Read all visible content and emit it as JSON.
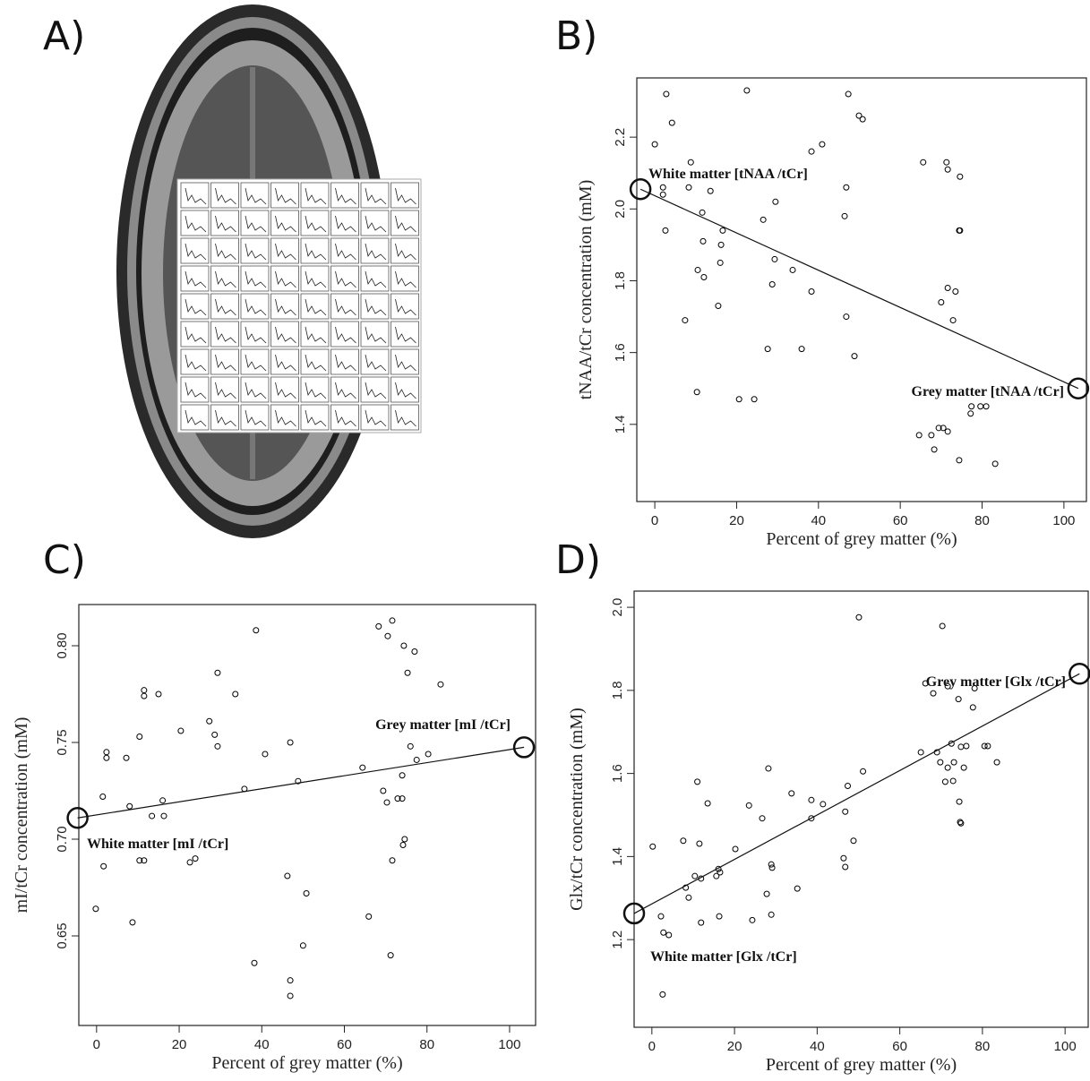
{
  "panel_labels": [
    "A)",
    "B)",
    "C)",
    "D)"
  ],
  "chart_data": [
    {
      "type": "scatter",
      "xlabel": "Percent of grey matter (%)",
      "ylabel": "tNAA/tCr concentration (mM)",
      "color": "#000000",
      "annotations": [
        "White matter [tNAA /tCr]",
        "Grey matter [tNAA /tCr]"
      ],
      "xlim": [
        -4.4,
        105.5
      ],
      "ylim": [
        1.185,
        2.365
      ],
      "xticks": [
        0,
        20,
        40,
        60,
        80,
        100
      ],
      "yticks": [
        1.4,
        1.6,
        1.8,
        {
          "value": 2,
          "label": "2.0"
        },
        2.2
      ],
      "x": [
        2.8,
        22.5,
        47.3,
        4.2,
        49.9,
        50.8,
        0,
        38.3,
        40.9,
        8.8,
        65.6,
        71.3,
        71.6,
        74.6,
        2,
        2,
        8.3,
        13.6,
        46.8,
        29.5,
        11.6,
        46.4,
        26.5,
        74.4,
        74.6,
        2.6,
        16.6,
        11.8,
        16.2,
        29.3,
        16,
        33.7,
        10.5,
        12,
        28.7,
        71.6,
        73.5,
        38.3,
        70,
        15.5,
        46.8,
        72.9,
        7.4,
        27.6,
        35.9,
        48.8,
        10.3,
        20.6,
        24.3,
        79.6,
        81,
        77.4,
        77.2,
        70.5,
        69.4,
        71.6,
        64.6,
        67.6,
        68.3,
        74.4,
        83.2
      ],
      "values": [
        2.32,
        2.33,
        2.32,
        2.24,
        2.26,
        2.25,
        2.18,
        2.16,
        2.18,
        2.13,
        2.13,
        2.13,
        2.11,
        2.09,
        2.06,
        2.04,
        2.06,
        2.05,
        2.06,
        2.02,
        1.99,
        1.98,
        1.97,
        1.94,
        1.94,
        1.94,
        1.94,
        1.91,
        1.9,
        1.86,
        1.85,
        1.83,
        1.83,
        1.81,
        1.79,
        1.78,
        1.77,
        1.77,
        1.74,
        1.73,
        1.7,
        1.69,
        1.69,
        1.61,
        1.61,
        1.59,
        1.49,
        1.47,
        1.47,
        1.45,
        1.45,
        1.45,
        1.43,
        1.39,
        1.39,
        1.38,
        1.37,
        1.37,
        1.33,
        1.3,
        1.29
      ],
      "fit": {
        "x": [
          -3.5,
          103.5
        ],
        "y": [
          2.055,
          1.5
        ]
      }
    },
    {
      "type": "scatter",
      "xlabel": "Percent of grey matter (%)",
      "ylabel": "mI/tCr concentration (mM)",
      "color": "#000000",
      "annotations": [
        "White matter [mI /tCr]",
        "Grey matter [mI /tCr]"
      ],
      "xlim": [
        -4.3,
        106.3
      ],
      "ylim": [
        0.6037,
        0.8213
      ],
      "xticks": [
        0,
        20,
        40,
        60,
        80,
        100
      ],
      "yticks": [
        0.65,
        {
          "value": 0.7,
          "label": "0.70"
        },
        0.75,
        {
          "value": 0.8,
          "label": "0.80"
        }
      ],
      "x": [
        68.3,
        71.6,
        70.5,
        38.6,
        74.4,
        77,
        75.3,
        29.3,
        83.3,
        11.5,
        11.5,
        15,
        33.6,
        27.3,
        10.4,
        28.6,
        20.4,
        29.3,
        46.9,
        76,
        2.4,
        2.4,
        40.8,
        80.3,
        77.5,
        7.2,
        64.4,
        48.8,
        35.8,
        69.4,
        1.5,
        16,
        74,
        74,
        72.9,
        70.3,
        8,
        13.4,
        16.3,
        74.6,
        74.2,
        10.4,
        11.5,
        71.6,
        22.6,
        23.9,
        1.7,
        46.2,
        50.8,
        -0.2,
        65.9,
        8.7,
        50,
        71.2,
        38.2,
        46.9,
        46.9
      ],
      "values": [
        0.81,
        0.813,
        0.805,
        0.808,
        0.8,
        0.797,
        0.786,
        0.786,
        0.78,
        0.777,
        0.774,
        0.775,
        0.775,
        0.761,
        0.753,
        0.754,
        0.756,
        0.748,
        0.75,
        0.748,
        0.745,
        0.742,
        0.744,
        0.744,
        0.741,
        0.742,
        0.737,
        0.73,
        0.726,
        0.725,
        0.722,
        0.72,
        0.733,
        0.721,
        0.721,
        0.719,
        0.717,
        0.712,
        0.712,
        0.7,
        0.697,
        0.689,
        0.689,
        0.689,
        0.688,
        0.69,
        0.686,
        0.681,
        0.672,
        0.664,
        0.66,
        0.657,
        0.645,
        0.64,
        0.636,
        0.627,
        0.619
      ],
      "fit": {
        "x": [
          -4.6,
          103.5
        ],
        "y": [
          0.711,
          0.7475
        ]
      }
    },
    {
      "type": "scatter",
      "xlabel": "Percent of grey matter (%)",
      "ylabel": "Glx/tCr concentration (mM)",
      "color": "#000000",
      "annotations": [
        "White matter [Glx /tCr]",
        "Grey matter [Glx /tCr]"
      ],
      "xlim": [
        -4.3,
        105.6
      ],
      "ylim": [
        0.989,
        2.039
      ],
      "xticks": [
        0,
        20,
        40,
        60,
        80,
        100
      ],
      "yticks": [
        1.2,
        1.4,
        1.6,
        1.8,
        {
          "value": 2,
          "label": "2.0"
        }
      ],
      "x": [
        50.1,
        70.3,
        66.2,
        71.6,
        68.1,
        78.1,
        74.2,
        77.7,
        72.5,
        76.1,
        74.8,
        65.1,
        69,
        81.3,
        80.5,
        69.8,
        73.1,
        83.5,
        71.6,
        75.5,
        72.9,
        71,
        28.2,
        51.1,
        47.4,
        74.4,
        74.6,
        74.8,
        33.8,
        38.6,
        41.4,
        11,
        23.5,
        13.5,
        38.6,
        46.8,
        26.7,
        48.8,
        7.6,
        0.2,
        11.5,
        20.2,
        28.9,
        29.1,
        46.8,
        46.4,
        16.1,
        16.5,
        15.6,
        10.4,
        11.9,
        35.2,
        27.8,
        8.9,
        8.2,
        16.3,
        28.9,
        24.3,
        11.9,
        2.2,
        2.8,
        4.1,
        2.6
      ],
      "values": [
        1.976,
        1.955,
        1.817,
        1.81,
        1.793,
        1.805,
        1.779,
        1.759,
        1.672,
        1.666,
        1.664,
        1.651,
        1.651,
        1.666,
        1.666,
        1.627,
        1.627,
        1.627,
        1.614,
        1.614,
        1.582,
        1.58,
        1.612,
        1.605,
        1.57,
        1.532,
        1.483,
        1.48,
        1.552,
        1.536,
        1.526,
        1.58,
        1.523,
        1.528,
        1.492,
        1.508,
        1.492,
        1.438,
        1.438,
        1.424,
        1.431,
        1.418,
        1.381,
        1.373,
        1.375,
        1.396,
        1.37,
        1.362,
        1.353,
        1.353,
        1.347,
        1.323,
        1.31,
        1.301,
        1.325,
        1.256,
        1.26,
        1.247,
        1.241,
        1.256,
        1.217,
        1.211,
        1.068
      ],
      "fit": {
        "x": [
          -4.3,
          103.5
        ],
        "y": [
          1.263,
          1.84
        ]
      }
    }
  ]
}
